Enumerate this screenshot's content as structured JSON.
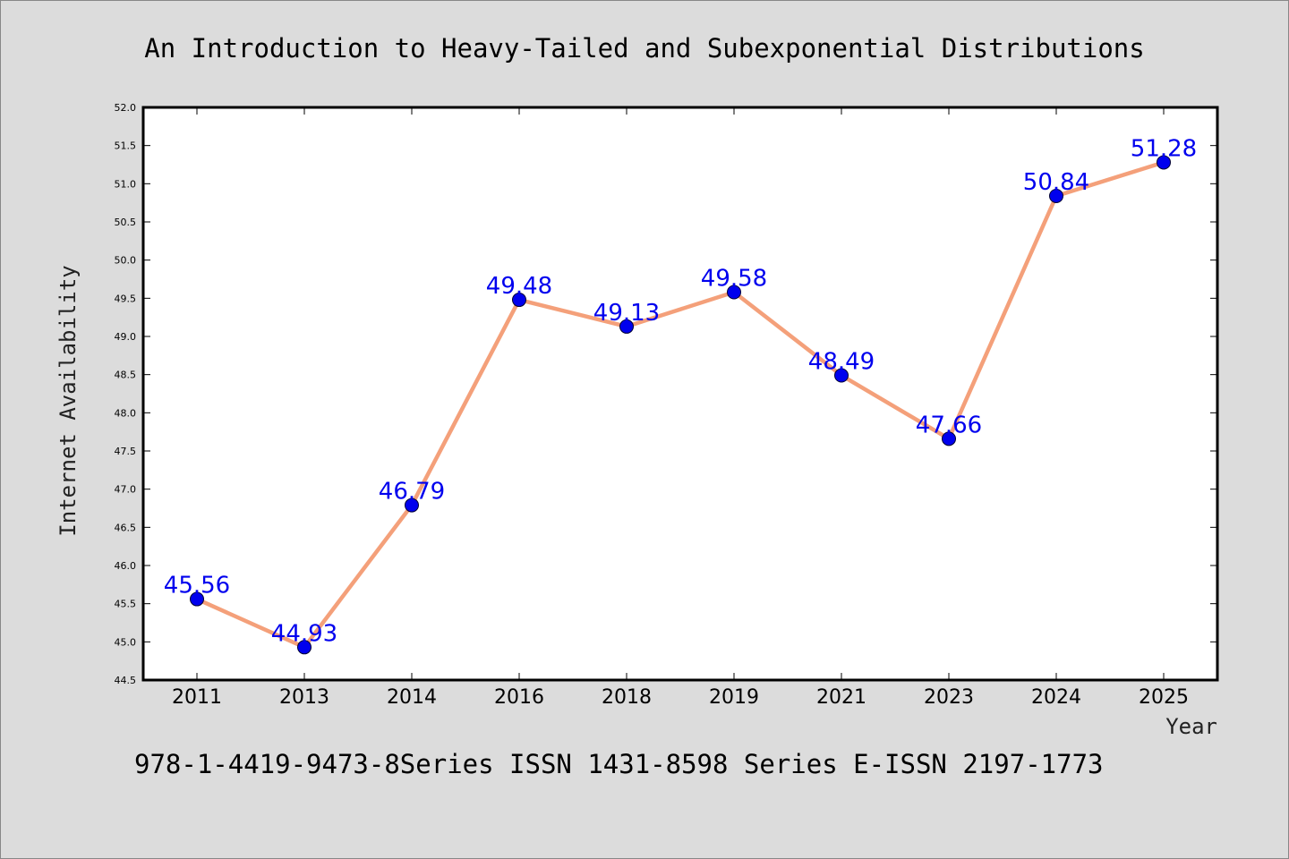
{
  "header": {
    "title": "An Introduction to Heavy-Tailed and Subexponential Distributions"
  },
  "footer": {
    "text": "978-1-4419-9473-8Series ISSN 1431-8598 Series E-ISSN 2197-1773"
  },
  "colors": {
    "line": "#f4a07a",
    "marker": "#0000ee",
    "data_label": "#0000ee",
    "background": "#dcdcdc"
  },
  "chart_data": {
    "type": "line",
    "title": "An Introduction to Heavy-Tailed and Subexponential Distributions",
    "xlabel": "Year",
    "ylabel": "Internet Availability",
    "categories": [
      "2011",
      "2013",
      "2014",
      "2016",
      "2018",
      "2019",
      "2021",
      "2023",
      "2024",
      "2025"
    ],
    "series": [
      {
        "values": [
          45.56,
          44.93,
          46.79,
          49.48,
          49.13,
          49.58,
          48.49,
          47.66,
          50.84,
          51.28
        ],
        "labels": [
          "45.56",
          "44.93",
          "46.79",
          "49.48",
          "49.13",
          "49.58",
          "48.49",
          "47.66",
          "50.84",
          "51.28"
        ]
      }
    ],
    "ylim": [
      44.5,
      52.0
    ],
    "yticks": [
      "44.5",
      "45.0",
      "45.5",
      "46.0",
      "46.5",
      "47.0",
      "47.5",
      "48.0",
      "48.5",
      "49.0",
      "49.5",
      "50.0",
      "50.5",
      "51.0",
      "51.5",
      "52.0"
    ],
    "grid": false,
    "legend": "none"
  }
}
